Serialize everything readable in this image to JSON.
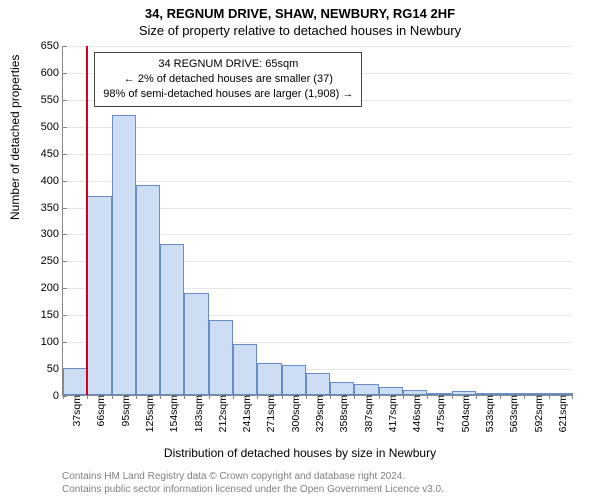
{
  "chart": {
    "type": "histogram",
    "title_main": "34, REGNUM DRIVE, SHAW, NEWBURY, RG14 2HF",
    "title_sub": "Size of property relative to detached houses in Newbury",
    "xlabel": "Distribution of detached houses by size in Newbury",
    "ylabel": "Number of detached properties",
    "background_color": "#ffffff",
    "grid_color": "#e6e6e6",
    "axis_color": "#888888",
    "bar_fill": "#cdddf3",
    "bar_border": "#6a8cc4",
    "marker_color": "#d00020",
    "marker_value_sqm": 65,
    "ylim": [
      0,
      650
    ],
    "ytick_step": 50,
    "yticks": [
      0,
      50,
      100,
      150,
      200,
      250,
      300,
      350,
      400,
      450,
      500,
      550,
      600,
      650
    ],
    "xtick_labels": [
      "37sqm",
      "66sqm",
      "95sqm",
      "125sqm",
      "154sqm",
      "183sqm",
      "212sqm",
      "241sqm",
      "271sqm",
      "300sqm",
      "329sqm",
      "358sqm",
      "387sqm",
      "417sqm",
      "446sqm",
      "475sqm",
      "504sqm",
      "533sqm",
      "563sqm",
      "592sqm",
      "621sqm"
    ],
    "bin_width_sqm": 29.2,
    "values": [
      50,
      370,
      520,
      390,
      280,
      190,
      140,
      95,
      60,
      55,
      40,
      25,
      20,
      15,
      10,
      3,
      7,
      3,
      2,
      3,
      2
    ],
    "annotation": {
      "line1": "34 REGNUM DRIVE: 65sqm",
      "line2": "← 2% of detached houses are smaller (37)",
      "line3": "98% of semi-detached houses are larger (1,908) →"
    },
    "footer_line1": "Contains HM Land Registry data © Crown copyright and database right 2024.",
    "footer_line2": "Contains public sector information licensed under the Open Government Licence v3.0.",
    "title_fontsize": 13,
    "label_fontsize": 12,
    "tick_fontsize": 11,
    "footer_color": "#808080"
  }
}
